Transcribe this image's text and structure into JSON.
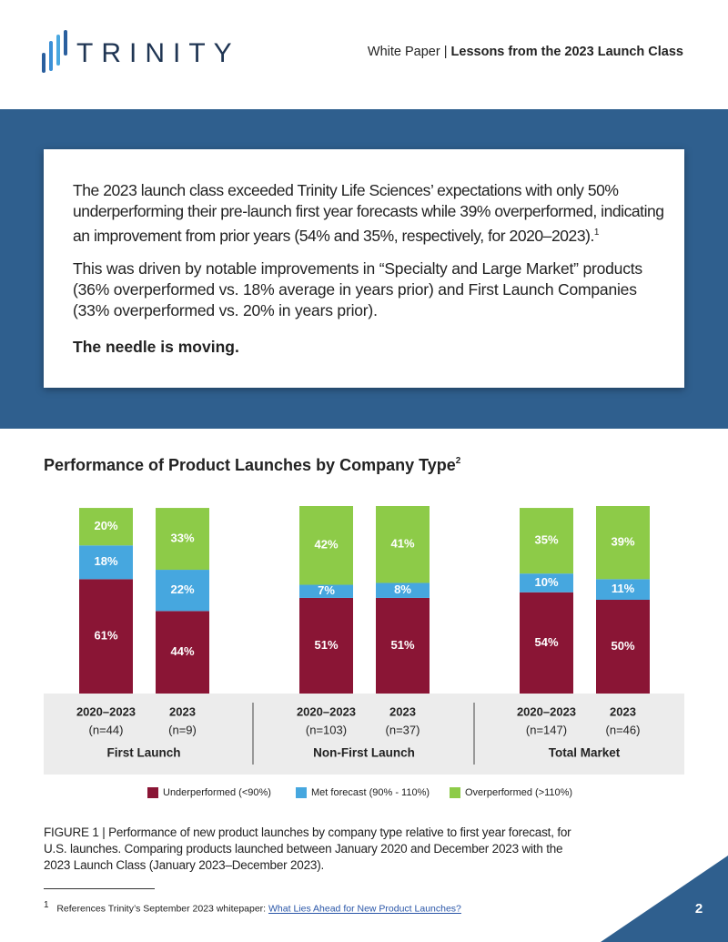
{
  "header": {
    "logo": "TRINITY",
    "doc_type": "White Paper",
    "separator": "|",
    "doc_title": "Lessons from the 2023 Launch Class"
  },
  "callout": {
    "paragraph_1": "The 2023 launch class exceeded Trinity Life Sciences’ expectations with only 50% underperforming their pre-launch first year forecasts while 39% overperformed, indicating an improvement from prior years (54% and 35%, respectively, for 2020–2023).",
    "paragraph_1_note": "1",
    "paragraph_2": "This was driven by notable improvements in “Specialty and Large Market” products (36% overperformed vs. 18% average in years prior) and First Launch Companies (33% overperformed vs. 20% in years prior).",
    "paragraph_3": "The needle is moving."
  },
  "chart_data": {
    "type": "stacked-bar",
    "title": "Performance of Product Launches by Company Type",
    "title_note": "2",
    "groups": [
      "First Launch",
      "Non-First Launch",
      "Total Market"
    ],
    "categories": [
      "2020–2023",
      "2023",
      "2020–2023",
      "2023",
      "2020–2023",
      "2023"
    ],
    "category_notes": [
      "(n=44)",
      "(n=9)",
      "(n=103)",
      "(n=37)",
      "(n=147)",
      "(n=46)"
    ],
    "series": [
      {
        "name": "Underperformed (<90%)",
        "color": "#8a1535",
        "values": [
          61,
          44,
          51,
          51,
          54,
          50
        ],
        "value_labels": [
          "61%",
          "44%",
          "51%",
          "51%",
          "54%",
          "50%"
        ]
      },
      {
        "name": "Met forecast (90% - 110%)",
        "color": "#46a7df",
        "values": [
          18,
          22,
          7,
          8,
          10,
          11
        ],
        "value_labels": [
          "18%",
          "22%",
          "7%",
          "8%",
          "10%",
          "11%"
        ]
      },
      {
        "name": "Overperformed (>110%)",
        "color": "#8dcb48",
        "values": [
          20,
          33,
          42,
          41,
          35,
          39
        ],
        "value_labels": [
          "20%",
          "33%",
          "42%",
          "41%",
          "35%",
          "39%"
        ]
      }
    ]
  },
  "caption": "FIGURE 1 | Performance of new product launches by company type relative to first year forecast, for U.S. launches. Comparing products launched between January 2020 and December 2023 with the 2023 Launch Class (January 2023–December 2023).",
  "footnote": {
    "marker": "1",
    "text": "References Trinity’s September 2023 whitepaper:",
    "link": "What Lies Ahead for New Product Launches?"
  },
  "page_number": "2"
}
